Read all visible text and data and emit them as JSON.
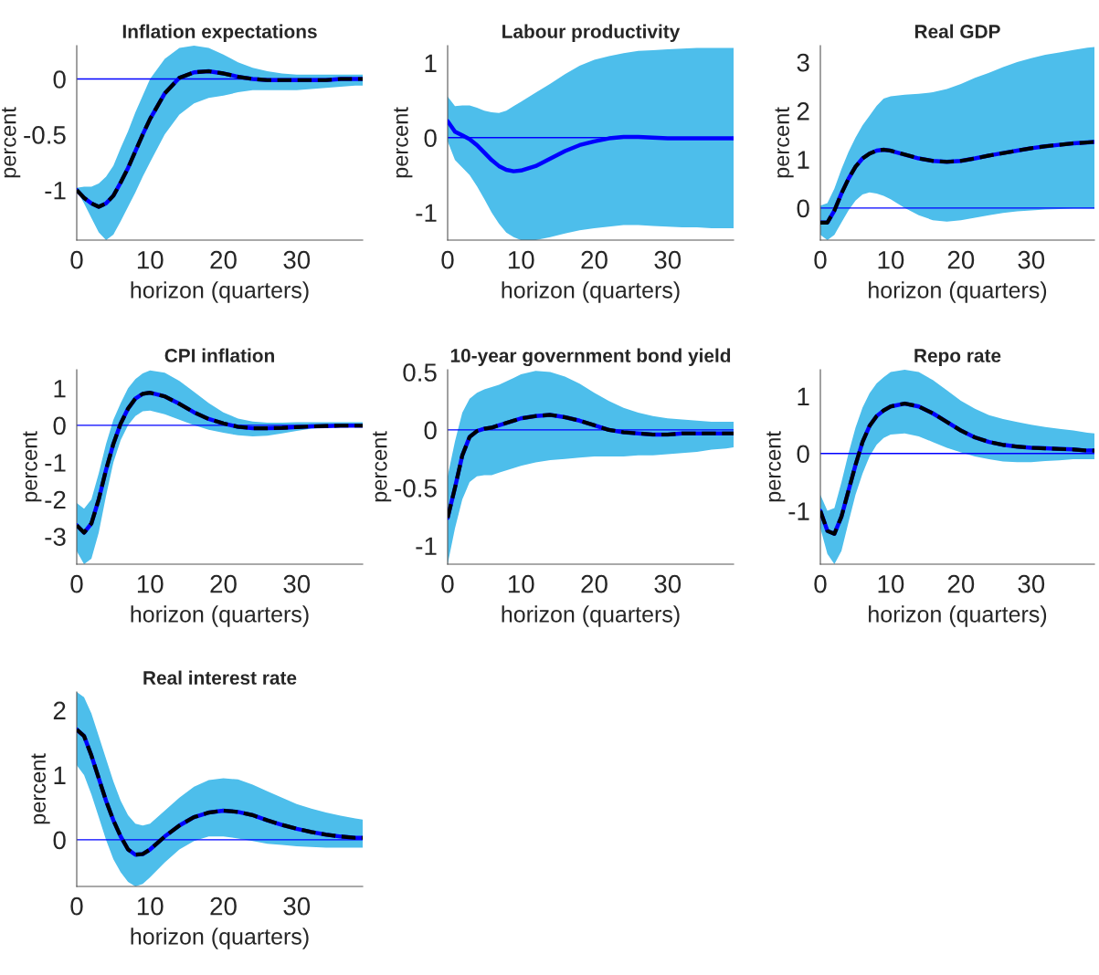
{
  "chart_data": [
    {
      "type": "line",
      "title": "Inflation expectations",
      "xlabel": "horizon (quarters)",
      "ylabel": "percent",
      "x": [
        0,
        1,
        2,
        3,
        4,
        5,
        6,
        7,
        8,
        9,
        10,
        12,
        14,
        16,
        18,
        20,
        22,
        24,
        26,
        28,
        30,
        32,
        34,
        36,
        38,
        39
      ],
      "xlim": [
        0,
        39
      ],
      "xticks": [
        0,
        10,
        20,
        30
      ],
      "ylim": [
        -1.45,
        0.3
      ],
      "yticks": [
        -1,
        -0.5,
        0
      ],
      "ref_lines": [
        {
          "axis": "y",
          "value": 0,
          "color": "#0000ff"
        }
      ],
      "series": [
        {
          "color": "#0000ff",
          "line_style": "solid",
          "values": [
            -1.0,
            -1.07,
            -1.12,
            -1.15,
            -1.12,
            -1.05,
            -0.93,
            -0.8,
            -0.65,
            -0.5,
            -0.36,
            -0.13,
            0.01,
            0.06,
            0.07,
            0.05,
            0.02,
            0.0,
            -0.01,
            -0.01,
            -0.01,
            -0.01,
            -0.01,
            0.0,
            0.0,
            0.0
          ],
          "lower": [
            -1.0,
            -1.12,
            -1.25,
            -1.38,
            -1.45,
            -1.4,
            -1.28,
            -1.15,
            -1.02,
            -0.88,
            -0.75,
            -0.5,
            -0.32,
            -0.22,
            -0.17,
            -0.15,
            -0.12,
            -0.1,
            -0.1,
            -0.1,
            -0.1,
            -0.09,
            -0.08,
            -0.07,
            -0.06,
            -0.06
          ],
          "upper": [
            -0.98,
            -0.97,
            -0.97,
            -0.94,
            -0.88,
            -0.78,
            -0.62,
            -0.47,
            -0.3,
            -0.15,
            0.0,
            0.18,
            0.28,
            0.3,
            0.28,
            0.22,
            0.15,
            0.1,
            0.07,
            0.05,
            0.04,
            0.04,
            0.04,
            0.04,
            0.04,
            0.04
          ]
        },
        {
          "color": "#000000",
          "line_style": "dashed",
          "values": [
            -1.0,
            -1.07,
            -1.12,
            -1.15,
            -1.12,
            -1.05,
            -0.93,
            -0.8,
            -0.65,
            -0.5,
            -0.36,
            -0.13,
            0.01,
            0.06,
            0.07,
            0.05,
            0.02,
            0.0,
            -0.01,
            -0.01,
            -0.01,
            -0.01,
            -0.01,
            0.0,
            0.0,
            0.0
          ]
        }
      ]
    },
    {
      "type": "line",
      "title": "Labour productivity",
      "xlabel": "horizon (quarters)",
      "ylabel": "percent",
      "x": [
        0,
        1,
        2,
        3,
        4,
        5,
        6,
        7,
        8,
        9,
        10,
        12,
        14,
        16,
        18,
        20,
        22,
        24,
        26,
        28,
        30,
        32,
        34,
        36,
        38,
        39
      ],
      "xlim": [
        0,
        39
      ],
      "xticks": [
        0,
        10,
        20,
        30
      ],
      "ylim": [
        -1.37,
        1.23
      ],
      "yticks": [
        -1,
        0,
        1
      ],
      "ref_lines": [
        {
          "axis": "y",
          "value": 0,
          "color": "#0000ff"
        }
      ],
      "series": [
        {
          "color": "#0000ff",
          "line_style": "solid",
          "values": [
            0.22,
            0.08,
            0.03,
            -0.02,
            -0.1,
            -0.2,
            -0.3,
            -0.38,
            -0.43,
            -0.45,
            -0.44,
            -0.38,
            -0.28,
            -0.18,
            -0.1,
            -0.05,
            -0.01,
            0.01,
            0.01,
            0.0,
            -0.01,
            -0.01,
            -0.01,
            -0.01,
            -0.01,
            -0.01
          ],
          "lower": [
            -0.05,
            -0.3,
            -0.4,
            -0.5,
            -0.65,
            -0.82,
            -1.0,
            -1.15,
            -1.27,
            -1.33,
            -1.37,
            -1.37,
            -1.33,
            -1.28,
            -1.24,
            -1.21,
            -1.19,
            -1.17,
            -1.17,
            -1.18,
            -1.19,
            -1.2,
            -1.2,
            -1.21,
            -1.21,
            -1.21
          ],
          "upper": [
            0.55,
            0.42,
            0.43,
            0.43,
            0.4,
            0.36,
            0.34,
            0.33,
            0.36,
            0.42,
            0.48,
            0.6,
            0.72,
            0.85,
            0.96,
            1.04,
            1.09,
            1.13,
            1.16,
            1.17,
            1.18,
            1.19,
            1.2,
            1.2,
            1.2,
            1.2
          ]
        }
      ]
    },
    {
      "type": "line",
      "title": "Real GDP",
      "xlabel": "horizon (quarters)",
      "ylabel": "percent",
      "x": [
        0,
        1,
        2,
        3,
        4,
        5,
        6,
        7,
        8,
        9,
        10,
        12,
        14,
        16,
        18,
        20,
        22,
        24,
        26,
        28,
        30,
        32,
        34,
        36,
        38,
        39
      ],
      "xlim": [
        0,
        39
      ],
      "xticks": [
        0,
        10,
        20,
        30
      ],
      "ylim": [
        -0.66,
        3.34
      ],
      "yticks": [
        0,
        1,
        2,
        3
      ],
      "ref_lines": [
        {
          "axis": "y",
          "value": 0,
          "color": "#0000ff"
        }
      ],
      "series": [
        {
          "color": "#0000ff",
          "line_style": "solid",
          "values": [
            -0.3,
            -0.3,
            -0.05,
            0.3,
            0.6,
            0.85,
            1.02,
            1.12,
            1.18,
            1.2,
            1.18,
            1.1,
            1.02,
            0.97,
            0.95,
            0.97,
            1.02,
            1.08,
            1.13,
            1.18,
            1.23,
            1.27,
            1.3,
            1.33,
            1.35,
            1.36
          ],
          "lower": [
            -0.55,
            -0.66,
            -0.55,
            -0.3,
            -0.05,
            0.15,
            0.28,
            0.32,
            0.3,
            0.25,
            0.18,
            0.0,
            -0.15,
            -0.25,
            -0.28,
            -0.25,
            -0.2,
            -0.15,
            -0.1,
            -0.07,
            -0.05,
            -0.03,
            -0.02,
            -0.01,
            -0.01,
            -0.01
          ],
          "upper": [
            0.05,
            0.1,
            0.4,
            0.8,
            1.15,
            1.45,
            1.7,
            1.9,
            2.1,
            2.25,
            2.3,
            2.33,
            2.35,
            2.38,
            2.45,
            2.55,
            2.68,
            2.78,
            2.9,
            3.0,
            3.08,
            3.15,
            3.2,
            3.25,
            3.3,
            3.31
          ]
        },
        {
          "color": "#000000",
          "line_style": "dashed",
          "values": [
            -0.3,
            -0.3,
            -0.05,
            0.3,
            0.6,
            0.85,
            1.02,
            1.12,
            1.18,
            1.2,
            1.18,
            1.1,
            1.02,
            0.97,
            0.95,
            0.97,
            1.02,
            1.08,
            1.13,
            1.18,
            1.23,
            1.27,
            1.3,
            1.33,
            1.35,
            1.36
          ]
        }
      ]
    },
    {
      "type": "line",
      "title": "CPI inflation",
      "xlabel": "horizon (quarters)",
      "ylabel": "percent",
      "x": [
        0,
        1,
        2,
        3,
        4,
        5,
        6,
        7,
        8,
        9,
        10,
        12,
        14,
        16,
        18,
        20,
        22,
        24,
        26,
        28,
        30,
        32,
        34,
        36,
        38,
        39
      ],
      "xlim": [
        0,
        39
      ],
      "xticks": [
        0,
        10,
        20,
        30
      ],
      "ylim": [
        -3.75,
        1.5
      ],
      "yticks": [
        -3,
        -2,
        -1,
        0,
        1
      ],
      "ref_lines": [
        {
          "axis": "y",
          "value": 0,
          "color": "#0000ff"
        }
      ],
      "series": [
        {
          "color": "#0000ff",
          "line_style": "solid",
          "values": [
            -2.7,
            -2.9,
            -2.65,
            -2.0,
            -1.2,
            -0.5,
            0.05,
            0.45,
            0.72,
            0.85,
            0.88,
            0.78,
            0.58,
            0.35,
            0.17,
            0.05,
            -0.04,
            -0.08,
            -0.08,
            -0.07,
            -0.05,
            -0.03,
            -0.02,
            -0.01,
            -0.01,
            -0.01
          ],
          "lower": [
            -3.4,
            -3.75,
            -3.6,
            -2.9,
            -1.9,
            -1.0,
            -0.4,
            0.0,
            0.25,
            0.38,
            0.4,
            0.3,
            0.15,
            0.0,
            -0.12,
            -0.2,
            -0.27,
            -0.3,
            -0.28,
            -0.22,
            -0.15,
            -0.09,
            -0.06,
            -0.05,
            -0.05,
            -0.05
          ],
          "upper": [
            -2.1,
            -2.25,
            -2.0,
            -1.3,
            -0.5,
            0.15,
            0.6,
            1.0,
            1.25,
            1.4,
            1.48,
            1.42,
            1.2,
            0.9,
            0.6,
            0.35,
            0.18,
            0.1,
            0.07,
            0.07,
            0.08,
            0.08,
            0.08,
            0.08,
            0.08,
            0.08
          ]
        },
        {
          "color": "#000000",
          "line_style": "dashed",
          "values": [
            -2.7,
            -2.9,
            -2.65,
            -2.0,
            -1.2,
            -0.5,
            0.05,
            0.45,
            0.72,
            0.85,
            0.88,
            0.78,
            0.58,
            0.35,
            0.17,
            0.05,
            -0.04,
            -0.08,
            -0.08,
            -0.07,
            -0.05,
            -0.03,
            -0.02,
            -0.01,
            -0.01,
            -0.01
          ]
        }
      ]
    },
    {
      "type": "line",
      "title": "10-year government bond yield",
      "xlabel": "horizon (quarters)",
      "ylabel": "percent",
      "x": [
        0,
        1,
        2,
        3,
        4,
        5,
        6,
        7,
        8,
        9,
        10,
        12,
        14,
        16,
        18,
        20,
        22,
        24,
        26,
        28,
        30,
        32,
        34,
        36,
        38,
        39
      ],
      "xlim": [
        0,
        39
      ],
      "xticks": [
        0,
        10,
        20,
        30
      ],
      "ylim": [
        -1.16,
        0.52
      ],
      "yticks": [
        -1,
        -0.5,
        0,
        0.5
      ],
      "ref_lines": [
        {
          "axis": "y",
          "value": 0,
          "color": "#0000ff"
        }
      ],
      "series": [
        {
          "color": "#0000ff",
          "line_style": "solid",
          "values": [
            -0.76,
            -0.5,
            -0.22,
            -0.06,
            -0.01,
            0.01,
            0.02,
            0.04,
            0.06,
            0.08,
            0.1,
            0.12,
            0.13,
            0.11,
            0.08,
            0.04,
            0.0,
            -0.02,
            -0.03,
            -0.04,
            -0.04,
            -0.03,
            -0.03,
            -0.03,
            -0.03,
            -0.03
          ],
          "lower": [
            -1.16,
            -0.85,
            -0.6,
            -0.45,
            -0.4,
            -0.39,
            -0.39,
            -0.37,
            -0.35,
            -0.33,
            -0.31,
            -0.28,
            -0.26,
            -0.25,
            -0.24,
            -0.23,
            -0.23,
            -0.23,
            -0.22,
            -0.22,
            -0.21,
            -0.2,
            -0.19,
            -0.17,
            -0.16,
            -0.15
          ],
          "upper": [
            -0.4,
            -0.1,
            0.15,
            0.27,
            0.32,
            0.35,
            0.37,
            0.39,
            0.42,
            0.45,
            0.48,
            0.51,
            0.5,
            0.46,
            0.4,
            0.32,
            0.25,
            0.19,
            0.15,
            0.12,
            0.1,
            0.09,
            0.08,
            0.07,
            0.07,
            0.07
          ]
        },
        {
          "color": "#000000",
          "line_style": "dashed",
          "values": [
            -0.76,
            -0.5,
            -0.22,
            -0.06,
            -0.01,
            0.01,
            0.02,
            0.04,
            0.06,
            0.08,
            0.1,
            0.12,
            0.13,
            0.11,
            0.08,
            0.04,
            0.0,
            -0.02,
            -0.03,
            -0.04,
            -0.04,
            -0.03,
            -0.03,
            -0.03,
            -0.03,
            -0.03
          ]
        }
      ]
    },
    {
      "type": "line",
      "title": "Repo rate",
      "xlabel": "horizon (quarters)",
      "ylabel": "percent",
      "x": [
        0,
        1,
        2,
        3,
        4,
        5,
        6,
        7,
        8,
        9,
        10,
        12,
        14,
        16,
        18,
        20,
        22,
        24,
        26,
        28,
        30,
        32,
        34,
        36,
        38,
        39
      ],
      "xlim": [
        0,
        39
      ],
      "xticks": [
        0,
        10,
        20,
        30
      ],
      "ylim": [
        -1.93,
        1.46
      ],
      "yticks": [
        -1,
        0,
        1
      ],
      "ref_lines": [
        {
          "axis": "y",
          "value": 0,
          "color": "#0000ff"
        }
      ],
      "series": [
        {
          "color": "#0000ff",
          "line_style": "solid",
          "values": [
            -1.0,
            -1.35,
            -1.4,
            -1.1,
            -0.65,
            -0.2,
            0.2,
            0.48,
            0.65,
            0.75,
            0.82,
            0.87,
            0.82,
            0.7,
            0.55,
            0.4,
            0.28,
            0.2,
            0.15,
            0.12,
            0.1,
            0.09,
            0.08,
            0.07,
            0.05,
            0.05
          ],
          "lower": [
            -1.3,
            -1.75,
            -1.93,
            -1.7,
            -1.2,
            -0.72,
            -0.35,
            -0.05,
            0.15,
            0.27,
            0.33,
            0.35,
            0.3,
            0.2,
            0.1,
            0.02,
            -0.05,
            -0.1,
            -0.14,
            -0.15,
            -0.15,
            -0.13,
            -0.12,
            -0.1,
            -0.1,
            -0.1
          ],
          "upper": [
            -0.72,
            -1.0,
            -0.95,
            -0.5,
            0.0,
            0.45,
            0.8,
            1.05,
            1.22,
            1.33,
            1.42,
            1.46,
            1.42,
            1.28,
            1.1,
            0.92,
            0.78,
            0.67,
            0.6,
            0.55,
            0.5,
            0.46,
            0.43,
            0.4,
            0.36,
            0.35
          ]
        },
        {
          "color": "#000000",
          "line_style": "dashed",
          "values": [
            -1.0,
            -1.35,
            -1.4,
            -1.1,
            -0.65,
            -0.2,
            0.2,
            0.48,
            0.65,
            0.75,
            0.82,
            0.87,
            0.82,
            0.7,
            0.55,
            0.4,
            0.28,
            0.2,
            0.15,
            0.12,
            0.1,
            0.09,
            0.08,
            0.07,
            0.05,
            0.05
          ]
        }
      ]
    },
    {
      "type": "line",
      "title": "Real interest rate",
      "xlabel": "horizon (quarters)",
      "ylabel": "percent",
      "x": [
        0,
        1,
        2,
        3,
        4,
        5,
        6,
        7,
        8,
        9,
        10,
        12,
        14,
        16,
        18,
        20,
        22,
        24,
        26,
        28,
        30,
        32,
        34,
        36,
        38,
        39
      ],
      "xlim": [
        0,
        39
      ],
      "xticks": [
        0,
        10,
        20,
        30
      ],
      "ylim": [
        -0.72,
        2.28
      ],
      "yticks": [
        0,
        1,
        2
      ],
      "ref_lines": [
        {
          "axis": "y",
          "value": 0,
          "color": "#0000ff"
        }
      ],
      "series": [
        {
          "color": "#0000ff",
          "line_style": "solid",
          "values": [
            1.7,
            1.6,
            1.3,
            0.95,
            0.6,
            0.3,
            0.05,
            -0.15,
            -0.23,
            -0.22,
            -0.15,
            0.05,
            0.22,
            0.35,
            0.42,
            0.45,
            0.43,
            0.38,
            0.3,
            0.23,
            0.17,
            0.12,
            0.08,
            0.05,
            0.03,
            0.03
          ],
          "lower": [
            1.15,
            1.0,
            0.7,
            0.35,
            0.0,
            -0.3,
            -0.5,
            -0.65,
            -0.72,
            -0.68,
            -0.58,
            -0.35,
            -0.15,
            -0.02,
            0.05,
            0.05,
            0.02,
            -0.02,
            -0.06,
            -0.08,
            -0.1,
            -0.11,
            -0.12,
            -0.12,
            -0.12,
            -0.12
          ],
          "upper": [
            2.28,
            2.2,
            1.95,
            1.6,
            1.25,
            0.9,
            0.6,
            0.38,
            0.25,
            0.22,
            0.25,
            0.45,
            0.65,
            0.82,
            0.92,
            0.95,
            0.93,
            0.85,
            0.75,
            0.65,
            0.55,
            0.48,
            0.42,
            0.37,
            0.33,
            0.31
          ]
        },
        {
          "color": "#000000",
          "line_style": "dashed",
          "values": [
            1.7,
            1.6,
            1.3,
            0.95,
            0.6,
            0.3,
            0.05,
            -0.15,
            -0.23,
            -0.22,
            -0.15,
            0.05,
            0.22,
            0.35,
            0.42,
            0.45,
            0.43,
            0.38,
            0.3,
            0.23,
            0.17,
            0.12,
            0.08,
            0.05,
            0.03,
            0.03
          ]
        }
      ]
    }
  ]
}
